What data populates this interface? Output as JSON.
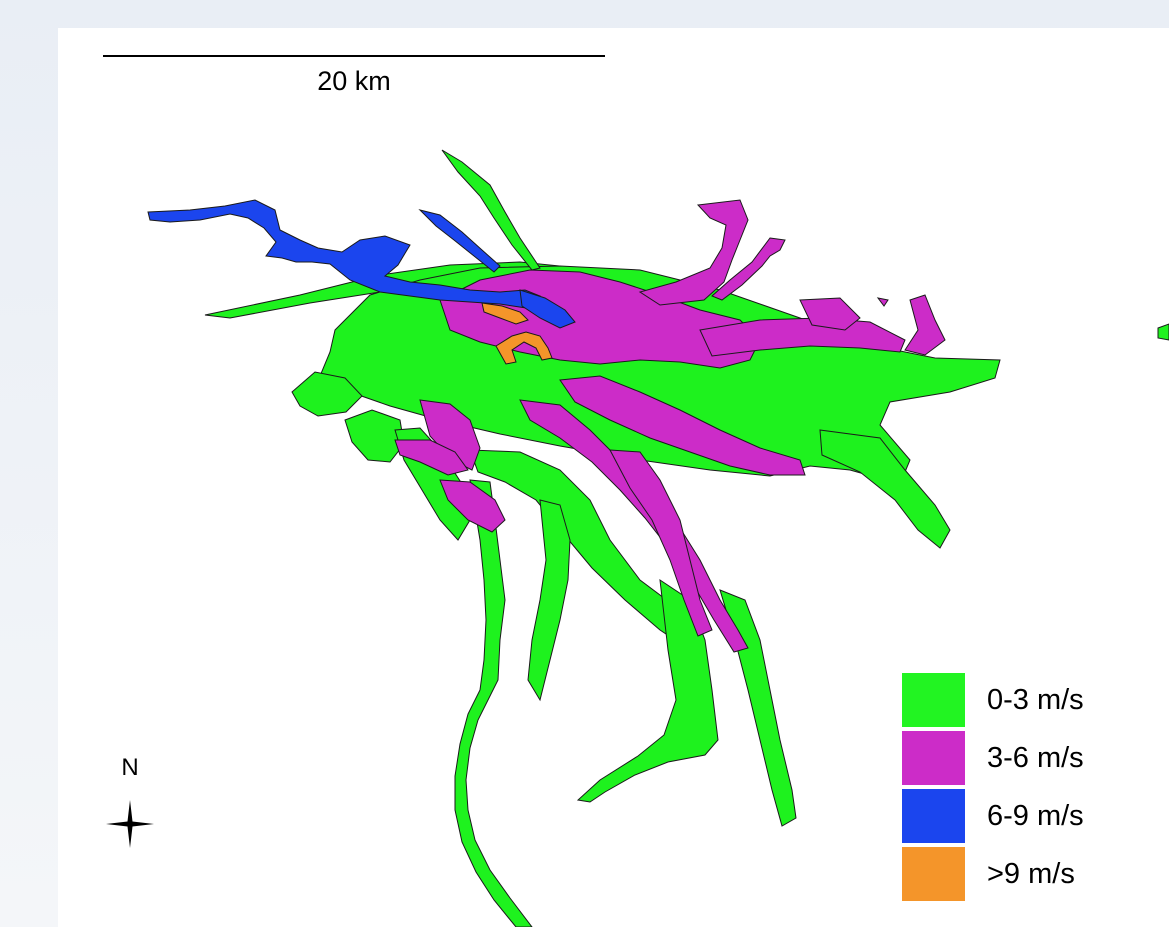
{
  "map": {
    "scale_label": "20 km",
    "north_label": "N",
    "colors": {
      "green": "#1ef21e",
      "magenta": "#cc2cc8",
      "blue": "#1b45ee",
      "orange": "#f4952a",
      "outline": "#1a1a1a"
    }
  },
  "legend": {
    "items": [
      {
        "label": "0-3 m/s",
        "color": "#22f422"
      },
      {
        "label": "3-6 m/s",
        "color": "#cc2cc8"
      },
      {
        "label": "6-9 m/s",
        "color": "#1b45ee"
      },
      {
        "label": ">9 m/s",
        "color": "#f4952a"
      }
    ]
  }
}
